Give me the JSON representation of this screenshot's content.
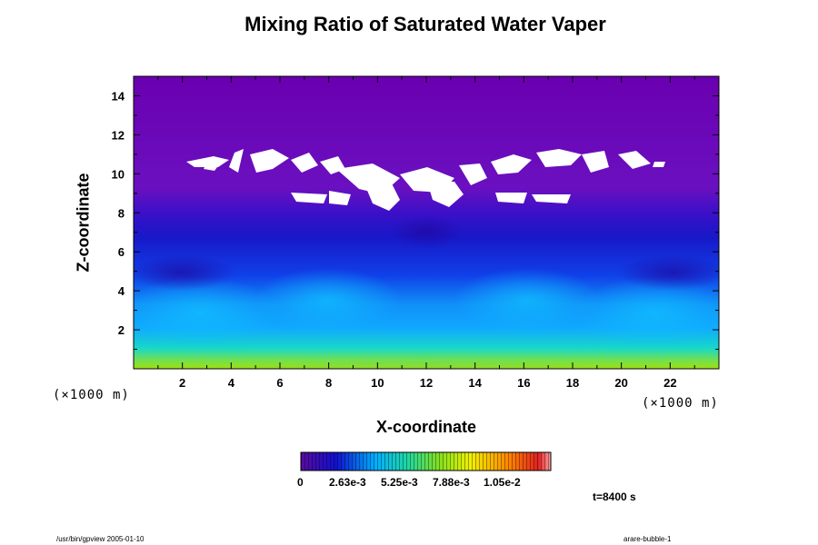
{
  "chart_data": {
    "type": "heatmap",
    "title": "Mixing Ratio of Saturated Water Vaper",
    "xlabel": "X-coordinate",
    "ylabel": "Z-coordinate",
    "x_unit": "(×1000 m)",
    "y_unit": "(×1000 m)",
    "xlim": [
      0,
      24
    ],
    "ylim": [
      0,
      15
    ],
    "x_ticks": [
      2,
      4,
      6,
      8,
      10,
      12,
      14,
      16,
      18,
      20,
      22
    ],
    "y_ticks": [
      2,
      4,
      6,
      8,
      10,
      12,
      14
    ],
    "colorbar": {
      "range": [
        0,
        0.0125
      ],
      "labels": [
        "0",
        "2.63e-3",
        "5.25e-3",
        "7.88e-3",
        "1.05e-2"
      ],
      "colors": [
        "#5a0a9e",
        "#1010d0",
        "#00b0ff",
        "#20d8a0",
        "#80e020",
        "#f0f000",
        "#ff8000",
        "#e02020"
      ]
    },
    "value_profile": {
      "z": [
        0,
        0.4,
        1,
        2,
        3,
        4,
        5,
        6,
        7,
        8,
        9,
        10,
        12,
        15
      ],
      "mixing_ratio": [
        0.0085,
        0.0065,
        0.0052,
        0.0042,
        0.0032,
        0.0024,
        0.0016,
        0.001,
        0.0006,
        0.0004,
        0.0002,
        0.0001,
        5e-05,
        2e-05
      ]
    },
    "missing_region": "z between about 8.2 and 10.5, x between about 2 and 22 (white, no data)"
  },
  "annotations": {
    "time": "t=8400 s",
    "footer_left": "/usr/bin/gpview 2005-01-10",
    "footer_right": "arare-bubble-1"
  }
}
